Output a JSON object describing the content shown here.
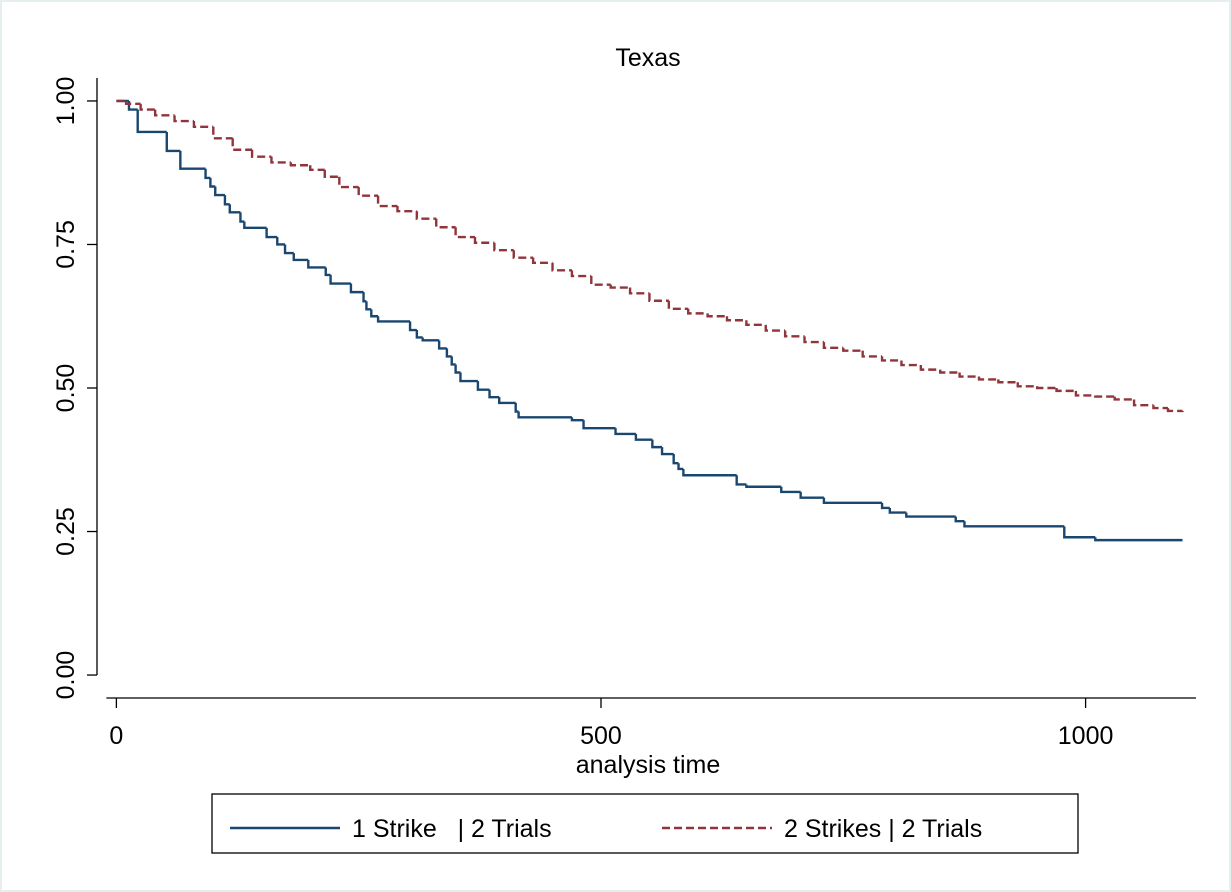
{
  "chart_data": {
    "type": "step",
    "title": "Texas",
    "xlabel": "analysis time",
    "xlim": [
      -20,
      1117
    ],
    "ylim": [
      -0.04,
      1.04
    ],
    "xticks": [
      0,
      500,
      1000
    ],
    "yticks": [
      {
        "value": 0,
        "label": "0.00"
      },
      {
        "value": 0.25,
        "label": "0.25"
      },
      {
        "value": 0.5,
        "label": "0.50"
      },
      {
        "value": 0.75,
        "label": "0.75"
      },
      {
        "value": 1,
        "label": "1.00"
      }
    ],
    "grid": false,
    "legend": "bottom",
    "series": [
      {
        "name": "1 Strike   | 2 Trials",
        "color": "#1a476f",
        "dash": "solid",
        "x": [
          0,
          13,
          22,
          52,
          66,
          92,
          97,
          102,
          112,
          117,
          128,
          132,
          155,
          166,
          174,
          183,
          198,
          216,
          221,
          242,
          255,
          258,
          263,
          270,
          303,
          310,
          316,
          333,
          341,
          346,
          350,
          355,
          373,
          385,
          395,
          412,
          415,
          470,
          482,
          515,
          536,
          553,
          563,
          575,
          580,
          585,
          640,
          650,
          686,
          706,
          730,
          790,
          798,
          815,
          866,
          875,
          978,
          1010,
          1100
        ],
        "values": [
          1.0,
          0.985,
          0.946,
          0.913,
          0.882,
          0.866,
          0.851,
          0.836,
          0.82,
          0.806,
          0.79,
          0.779,
          0.763,
          0.75,
          0.735,
          0.723,
          0.71,
          0.697,
          0.682,
          0.667,
          0.651,
          0.637,
          0.625,
          0.616,
          0.601,
          0.588,
          0.583,
          0.569,
          0.555,
          0.541,
          0.527,
          0.512,
          0.497,
          0.484,
          0.474,
          0.459,
          0.449,
          0.444,
          0.43,
          0.42,
          0.41,
          0.397,
          0.385,
          0.369,
          0.359,
          0.348,
          0.332,
          0.328,
          0.319,
          0.309,
          0.3,
          0.291,
          0.283,
          0.276,
          0.268,
          0.259,
          0.24,
          0.235,
          0.235
        ]
      },
      {
        "name": "2 Strikes | 2 Trials",
        "color": "#90353b",
        "dash": "dashed",
        "x": [
          0,
          10,
          25,
          40,
          60,
          80,
          100,
          120,
          140,
          160,
          180,
          200,
          215,
          230,
          250,
          270,
          290,
          310,
          330,
          350,
          370,
          390,
          410,
          430,
          450,
          470,
          490,
          510,
          530,
          550,
          570,
          590,
          610,
          630,
          650,
          670,
          690,
          710,
          730,
          750,
          770,
          790,
          810,
          830,
          850,
          870,
          890,
          910,
          930,
          950,
          970,
          990,
          1010,
          1030,
          1050,
          1070,
          1085,
          1100
        ],
        "values": [
          1.0,
          0.995,
          0.985,
          0.975,
          0.965,
          0.955,
          0.935,
          0.915,
          0.903,
          0.893,
          0.888,
          0.88,
          0.868,
          0.85,
          0.835,
          0.817,
          0.808,
          0.795,
          0.78,
          0.763,
          0.753,
          0.74,
          0.727,
          0.718,
          0.705,
          0.695,
          0.68,
          0.675,
          0.665,
          0.652,
          0.638,
          0.63,
          0.625,
          0.618,
          0.61,
          0.6,
          0.59,
          0.58,
          0.57,
          0.565,
          0.555,
          0.548,
          0.54,
          0.532,
          0.527,
          0.52,
          0.515,
          0.51,
          0.503,
          0.5,
          0.495,
          0.487,
          0.485,
          0.48,
          0.47,
          0.465,
          0.46,
          0.458
        ]
      }
    ]
  }
}
